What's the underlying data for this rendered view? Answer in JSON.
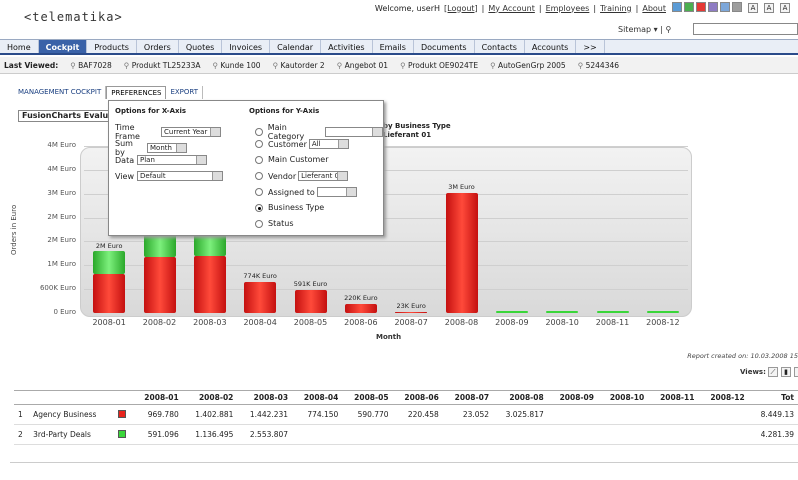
{
  "header": {
    "logo": "<telematika>",
    "welcome": "Welcome, userH",
    "logout": "[Logout]",
    "links": [
      "My Account",
      "Employees",
      "Training",
      "About"
    ],
    "swatches": [
      "#5b9bd5",
      "#4caf50",
      "#e53935",
      "#8e7cc3",
      "#7da7d9",
      "#9e9e9e"
    ],
    "font_sizes": [
      "A",
      "A",
      "A"
    ],
    "sitemap": "Sitemap",
    "search_placeholder": ""
  },
  "nav": {
    "items": [
      "Home",
      "Cockpit",
      "Products",
      "Orders",
      "Quotes",
      "Invoices",
      "Calendar",
      "Activities",
      "Emails",
      "Documents",
      "Contacts",
      "Accounts",
      ">>"
    ],
    "active": "Cockpit"
  },
  "last_viewed": {
    "label": "Last Viewed:",
    "items": [
      "BAF7028",
      "Produkt TL25233A",
      "Kunde 100",
      "Kautorder 2",
      "Angebot 01",
      "Produkt OE9024TE",
      "AutoGenGrp 2005",
      "5244346"
    ]
  },
  "subtabs": {
    "items": [
      "MANAGEMENT COCKPIT",
      "PREFERENCES",
      "EXPORT"
    ],
    "active": "PREFERENCES"
  },
  "fusion_title": "FusionCharts Evalua",
  "popup": {
    "x_header": "Options for X-Axis",
    "y_header": "Options for Y-Axis",
    "time_frame_label": "Time Frame",
    "time_frame": "Current Year",
    "sum_by_label": "Sum by",
    "sum_by": "Month",
    "data_label": "Data",
    "data": "Plan",
    "view_label": "View",
    "view": "Default",
    "y_options": [
      {
        "label": "Main Category",
        "value": "",
        "selected": false
      },
      {
        "label": "Customer",
        "value": "All",
        "selected": false
      },
      {
        "label": "Main Customer",
        "value": null,
        "selected": false
      },
      {
        "label": "Vendor",
        "value": "Lieferant 01",
        "selected": false
      },
      {
        "label": "Assigned to",
        "value": "",
        "selected": false
      },
      {
        "label": "Business Type",
        "value": null,
        "selected": true
      },
      {
        "label": "Status",
        "value": null,
        "selected": false
      }
    ]
  },
  "chart_data": {
    "type": "bar",
    "subtitle_lines": [
      "by Business Type",
      "Lieferant 01"
    ],
    "xlabel": "Month",
    "ylabel": "Orders in Euro",
    "y_ticks": [
      "0 Euro",
      "600K Euro",
      "1M Euro",
      "2M Euro",
      "2M Euro",
      "3M Euro",
      "4M Euro",
      "4M Euro"
    ],
    "ylim": [
      0,
      4200000
    ],
    "categories": [
      "2008-01",
      "2008-02",
      "2008-03",
      "2008-04",
      "2008-05",
      "2008-06",
      "2008-07",
      "2008-08",
      "2008-09",
      "2008-10",
      "2008-11",
      "2008-12"
    ],
    "series": [
      {
        "name": "Agency Business",
        "color": "#e8231c",
        "values": [
          969780,
          1402881,
          1442231,
          774150,
          590770,
          220458,
          23052,
          3025817,
          0,
          0,
          0,
          0
        ]
      },
      {
        "name": "3rd-Party Deals",
        "color": "#3ad63a",
        "values": [
          591096,
          1136495,
          2553807,
          0,
          0,
          0,
          0,
          0,
          0,
          0,
          0,
          0
        ]
      }
    ],
    "value_labels": [
      "2M Euro",
      "",
      "",
      "774K Euro",
      "591K Euro",
      "220K Euro",
      "23K Euro",
      "3M Euro",
      "",
      "",
      "",
      ""
    ]
  },
  "report_created": "Report created on: 10.03.2008 15",
  "views_label": "Views:",
  "table": {
    "headers": [
      "",
      "",
      "",
      "2008-01",
      "2008-02",
      "2008-03",
      "2008-04",
      "2008-05",
      "2008-06",
      "2008-07",
      "2008-08",
      "2008-09",
      "2008-10",
      "2008-11",
      "2008-12",
      "Tot"
    ],
    "rows": [
      {
        "n": "1",
        "name": "Agency Business",
        "color": "#e8231c",
        "values": [
          "969.780",
          "1.402.881",
          "1.442.231",
          "774.150",
          "590.770",
          "220.458",
          "23.052",
          "3.025.817",
          "",
          "",
          "",
          ""
        ],
        "total": "8.449.13"
      },
      {
        "n": "2",
        "name": "3rd-Party Deals",
        "color": "#3ad63a",
        "values": [
          "591.096",
          "1.136.495",
          "2.553.807",
          "",
          "",
          "",
          "",
          "",
          "",
          "",
          "",
          ""
        ],
        "total": "4.281.39"
      }
    ]
  }
}
